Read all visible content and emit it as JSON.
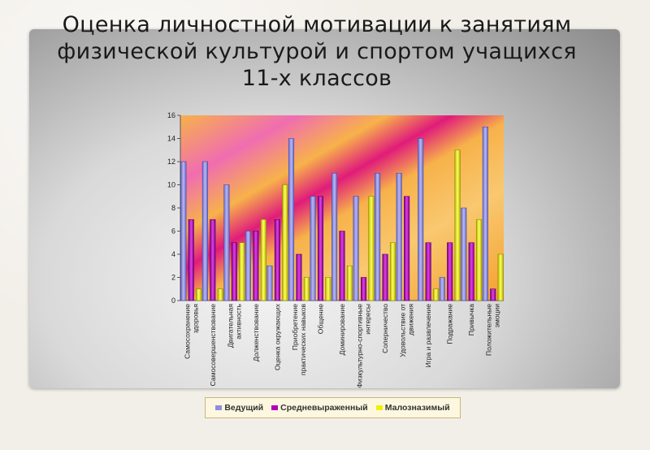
{
  "title_lines": [
    "Оценка личностной мотивации к занятиям",
    "физической культурой и спортом учащихся",
    "11-х классов"
  ],
  "colors": {
    "series1": "#8e8ee0",
    "series2": "#b300b8",
    "series3": "#f0f000"
  },
  "chart_data": {
    "type": "bar",
    "title": "Оценка личностной мотивации к занятиям физической культурой и спортом учащихся 11-х классов",
    "xlabel": "",
    "ylabel": "",
    "ylim": [
      0,
      16
    ],
    "yticks": [
      "0",
      "2",
      "4",
      "6",
      "8",
      "10",
      "12",
      "14",
      "16"
    ],
    "grid": false,
    "legend_position": "bottom",
    "categories": [
      "Самосохранение здоровья",
      "Самосовершенствование",
      "Двигательная активность",
      "Долженствование",
      "Оценка окружающих",
      "Приобретение практических навыков",
      "Общение",
      "Доминирование",
      "Физкультурно-спортивные интересы",
      "Соперничество",
      "Удовольствие от движения",
      "Игра и развлечение",
      "Подражание",
      "Привычка",
      "Положительные эмоции"
    ],
    "series": [
      {
        "name": "Ведущий",
        "values": [
          12,
          12,
          10,
          6,
          3,
          14,
          9,
          11,
          9,
          11,
          11,
          14,
          2,
          8,
          15
        ]
      },
      {
        "name": "Средневыраженный",
        "values": [
          7,
          7,
          5,
          6,
          7,
          4,
          9,
          6,
          2,
          4,
          9,
          5,
          5,
          5,
          1
        ]
      },
      {
        "name": "Малозназимый",
        "values": [
          1,
          1,
          5,
          7,
          10,
          2,
          2,
          3,
          9,
          5,
          0,
          1,
          13,
          7,
          4
        ]
      }
    ]
  }
}
